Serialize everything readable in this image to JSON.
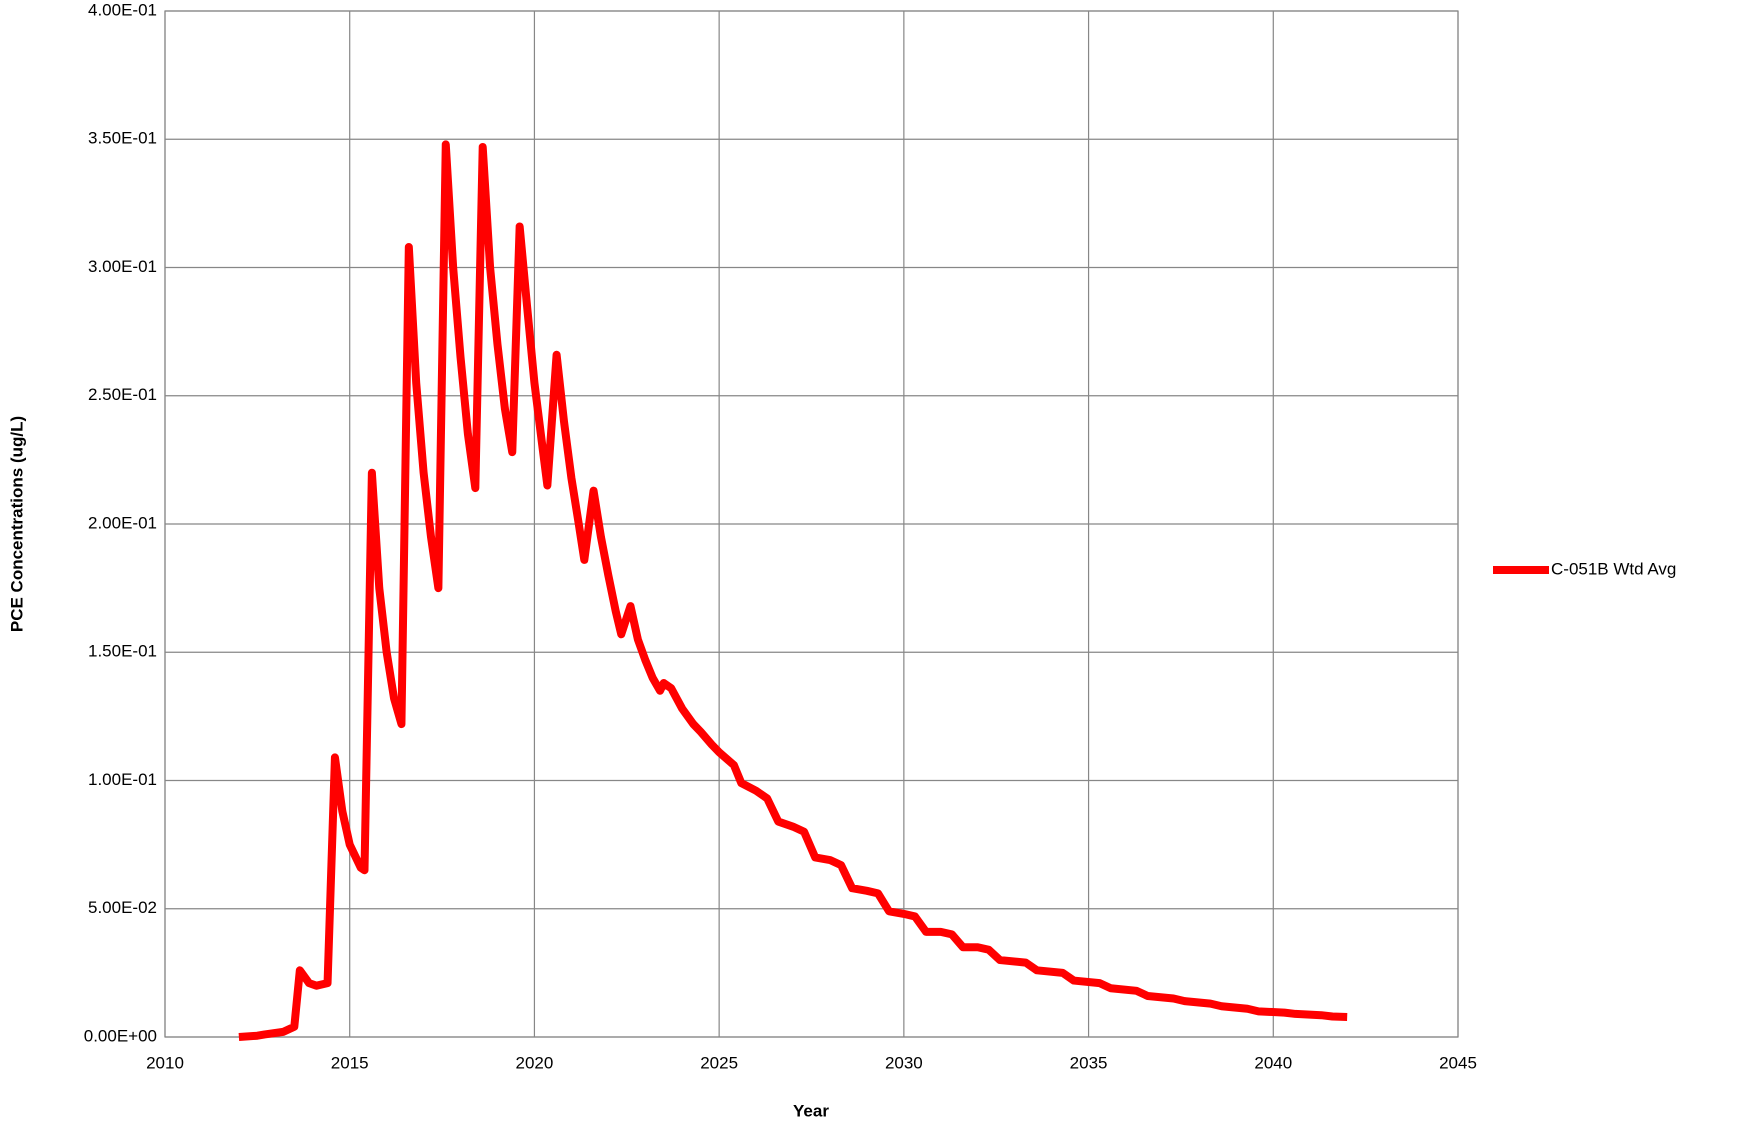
{
  "chart_data": {
    "type": "line",
    "xlabel": "Year",
    "ylabel": "PCE Concentrations (ug/L)",
    "x": [
      2012.0,
      2012.5,
      2012.7,
      2013.2,
      2013.5,
      2013.65,
      2013.9,
      2014.1,
      2014.4,
      2014.6,
      2014.8,
      2015.0,
      2015.3,
      2015.4,
      2015.6,
      2015.8,
      2016.0,
      2016.2,
      2016.4,
      2016.6,
      2016.8,
      2017.0,
      2017.2,
      2017.4,
      2017.6,
      2017.8,
      2018.0,
      2018.2,
      2018.4,
      2018.6,
      2018.8,
      2019.0,
      2019.2,
      2019.4,
      2019.6,
      2019.8,
      2020.0,
      2020.2,
      2020.35,
      2020.6,
      2020.8,
      2021.0,
      2021.2,
      2021.35,
      2021.6,
      2021.8,
      2022.0,
      2022.2,
      2022.35,
      2022.6,
      2022.8,
      2023.0,
      2023.2,
      2023.4,
      2023.5,
      2023.7,
      2024.0,
      2024.3,
      2024.5,
      2024.8,
      2025.0,
      2025.4,
      2025.6,
      2026.0,
      2026.3,
      2026.6,
      2027.0,
      2027.3,
      2027.6,
      2028.0,
      2028.3,
      2028.6,
      2029.0,
      2029.3,
      2029.6,
      2030.0,
      2030.3,
      2030.6,
      2031.0,
      2031.3,
      2031.6,
      2032.0,
      2032.3,
      2032.6,
      2033.3,
      2033.6,
      2034.3,
      2034.6,
      2035.3,
      2035.6,
      2036.3,
      2036.6,
      2037.3,
      2037.6,
      2038.3,
      2038.6,
      2039.3,
      2039.6,
      2040.3,
      2040.6,
      2041.3,
      2041.6,
      2042.0
    ],
    "series": [
      {
        "name": "C-051B Wtd Avg",
        "color": "#ff0000",
        "values": [
          0,
          0.0005,
          0.001,
          0.002,
          0.004,
          0.026,
          0.021,
          0.02,
          0.021,
          0.109,
          0.088,
          0.075,
          0.066,
          0.065,
          0.22,
          0.175,
          0.15,
          0.132,
          0.122,
          0.308,
          0.255,
          0.22,
          0.195,
          0.175,
          0.348,
          0.3,
          0.265,
          0.235,
          0.214,
          0.347,
          0.3,
          0.27,
          0.245,
          0.228,
          0.316,
          0.285,
          0.255,
          0.232,
          0.215,
          0.266,
          0.24,
          0.218,
          0.2,
          0.186,
          0.213,
          0.195,
          0.18,
          0.166,
          0.157,
          0.168,
          0.155,
          0.147,
          0.14,
          0.135,
          0.138,
          0.136,
          0.128,
          0.122,
          0.119,
          0.114,
          0.111,
          0.106,
          0.099,
          0.096,
          0.093,
          0.084,
          0.082,
          0.08,
          0.07,
          0.069,
          0.067,
          0.058,
          0.057,
          0.056,
          0.049,
          0.048,
          0.047,
          0.041,
          0.041,
          0.04,
          0.035,
          0.035,
          0.034,
          0.03,
          0.029,
          0.026,
          0.025,
          0.022,
          0.021,
          0.019,
          0.018,
          0.016,
          0.015,
          0.014,
          0.013,
          0.012,
          0.011,
          0.01,
          0.0095,
          0.009,
          0.0085,
          0.008,
          0.0078
        ]
      }
    ],
    "xlim": [
      2010,
      2045
    ],
    "xticks": [
      2010,
      2015,
      2020,
      2025,
      2030,
      2035,
      2040,
      2045
    ],
    "ylim": [
      0,
      0.4
    ],
    "yticks": [
      {
        "value": 0,
        "label": "0.00E+00"
      },
      {
        "value": 0.05,
        "label": "5.00E-02"
      },
      {
        "value": 0.1,
        "label": "1.00E-01"
      },
      {
        "value": 0.15,
        "label": "1.50E-01"
      },
      {
        "value": 0.2,
        "label": "2.00E-01"
      },
      {
        "value": 0.25,
        "label": "2.50E-01"
      },
      {
        "value": 0.3,
        "label": "3.00E-01"
      },
      {
        "value": 0.35,
        "label": "3.50E-01"
      },
      {
        "value": 0.4,
        "label": "4.00E-01"
      }
    ],
    "grid": true,
    "legend": "right"
  }
}
